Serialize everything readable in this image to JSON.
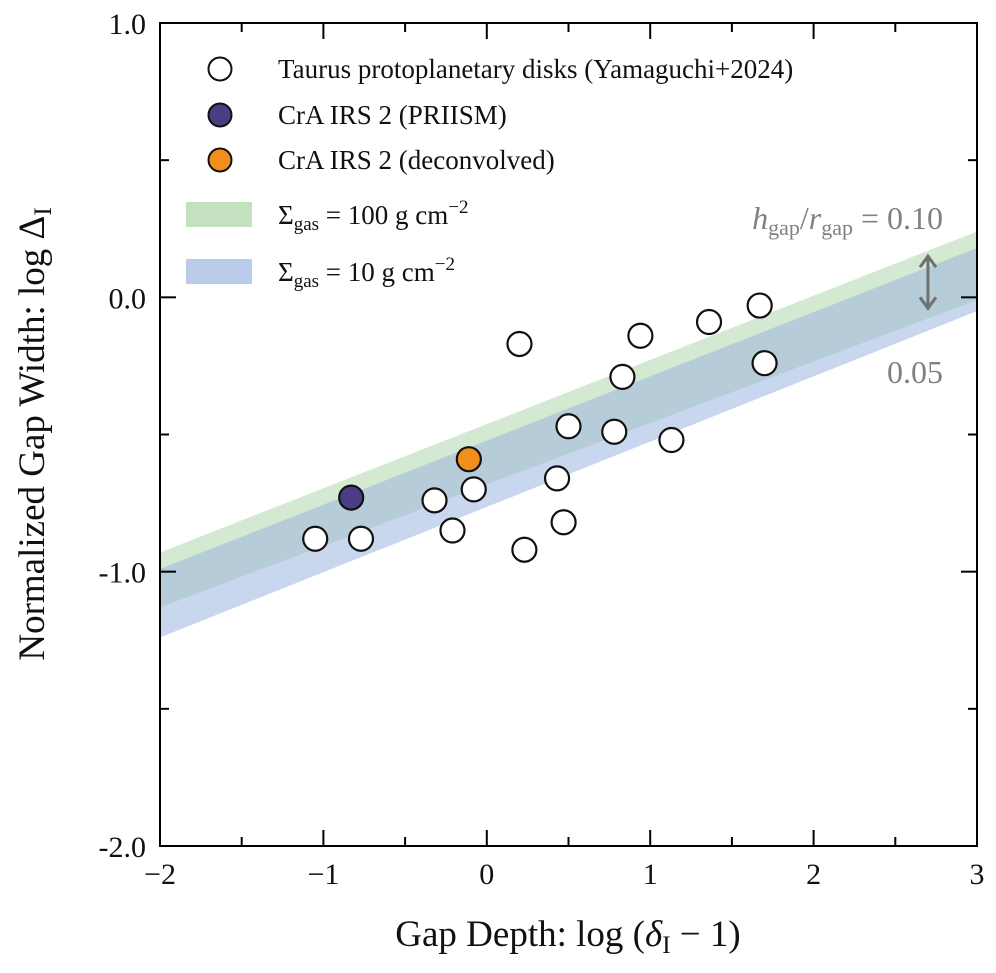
{
  "chart_data": {
    "type": "scatter",
    "xlabel": {
      "main": "Gap Depth: log",
      "open": "(",
      "var": "δ",
      "sub": "I",
      "tail": " − 1)"
    },
    "ylabel": {
      "main": "Normalized Gap Width: log",
      "var": "Δ",
      "sub": "I"
    },
    "xlim": [
      -2,
      3
    ],
    "ylim": [
      -2,
      1
    ],
    "x_ticks": [
      {
        "value": -2,
        "label": "−2"
      },
      {
        "value": -1,
        "label": "−1"
      },
      {
        "value": 0,
        "label": "0"
      },
      {
        "value": 1,
        "label": "1"
      },
      {
        "value": 2,
        "label": "2"
      },
      {
        "value": 3,
        "label": "3"
      }
    ],
    "y_ticks": [
      {
        "value": 1,
        "label": "1.0"
      },
      {
        "value": 0,
        "label": "0.0"
      },
      {
        "value": -1,
        "label": "-1.0"
      },
      {
        "value": -2,
        "label": "-2.0"
      }
    ],
    "x_minor_ticks": [
      -1.5,
      -0.5,
      0.5,
      1.5,
      2.5
    ],
    "y_minor_ticks": [
      0.5,
      -0.5,
      -1.5
    ],
    "bands": [
      {
        "name": "sigma100",
        "color": "#a9d3a4",
        "opacity": 0.5,
        "upper": [
          [
            -2,
            -0.93
          ],
          [
            3,
            0.24
          ]
        ],
        "lower": [
          [
            -2,
            -1.13
          ],
          [
            3,
            -0.01
          ]
        ]
      },
      {
        "name": "sigma10",
        "color": "#9db6e0",
        "opacity": 0.55,
        "upper": [
          [
            -2,
            -0.99
          ],
          [
            3,
            0.18
          ]
        ],
        "lower": [
          [
            -2,
            -1.24
          ],
          [
            3,
            -0.05
          ]
        ]
      }
    ],
    "series": [
      {
        "name": "Taurus protoplanetary disks (Yamaguchi+2024)",
        "color": "#ffffff",
        "points": [
          {
            "x": -1.05,
            "y": -0.88
          },
          {
            "x": -0.77,
            "y": -0.88
          },
          {
            "x": -0.32,
            "y": -0.74
          },
          {
            "x": -0.21,
            "y": -0.85
          },
          {
            "x": -0.08,
            "y": -0.7
          },
          {
            "x": 0.2,
            "y": -0.17
          },
          {
            "x": 0.23,
            "y": -0.92
          },
          {
            "x": 0.43,
            "y": -0.66
          },
          {
            "x": 0.47,
            "y": -0.82
          },
          {
            "x": 0.5,
            "y": -0.47
          },
          {
            "x": 0.78,
            "y": -0.49
          },
          {
            "x": 0.83,
            "y": -0.29
          },
          {
            "x": 0.94,
            "y": -0.14
          },
          {
            "x": 1.13,
            "y": -0.52
          },
          {
            "x": 1.36,
            "y": -0.09
          },
          {
            "x": 1.67,
            "y": -0.03
          },
          {
            "x": 1.7,
            "y": -0.24
          }
        ]
      },
      {
        "name": "CrA IRS 2 (PRIISM)",
        "color": "#4a3d86",
        "points": [
          {
            "x": -0.83,
            "y": -0.73
          }
        ]
      },
      {
        "name": "CrA IRS 2 (deconvolved)",
        "color": "#f28e1c",
        "points": [
          {
            "x": -0.11,
            "y": -0.59
          }
        ]
      }
    ],
    "legend": {
      "placement": "top-left",
      "points": [
        {
          "label": "Taurus protoplanetary disks (Yamaguchi+2024)",
          "color": "#ffffff"
        },
        {
          "label": "CrA IRS 2 (PRIISM)",
          "color": "#4a3d86"
        },
        {
          "label": "CrA IRS 2 (deconvolved)",
          "color": "#f28e1c"
        }
      ],
      "bands": [
        {
          "prefix": "Σ",
          "sub": "gas",
          "value": " = 100",
          "unit": " g cm",
          "exp": "−2",
          "color": "#a9d3a4"
        },
        {
          "prefix": "Σ",
          "sub": "gas",
          "value": " = 10",
          "unit": " g cm",
          "exp": "−2",
          "color": "#9db6e0"
        }
      ]
    },
    "annotations": {
      "upper": {
        "h": "h",
        "hsub": "gap",
        "slash": "/",
        "r": "r",
        "rsub": "gap",
        "value": " = 0.10"
      },
      "lower": {
        "value": "0.05"
      },
      "arrow": {
        "x": 2.7,
        "y_top": 0.15,
        "y_bottom": -0.04
      }
    }
  }
}
